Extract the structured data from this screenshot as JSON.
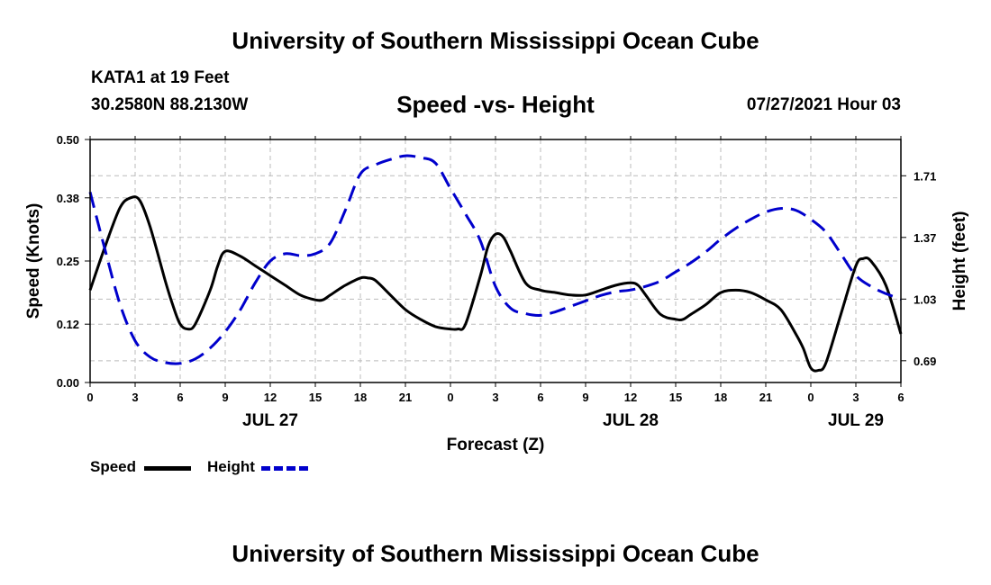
{
  "page": {
    "title_top": "University of Southern Mississippi Ocean Cube",
    "title_bottom": "University of Southern Mississippi Ocean Cube",
    "station": "KATA1 at 19 Feet",
    "coordinates": "30.2580N  88.2130W",
    "subtitle": "Speed -vs- Height",
    "date": "07/27/2021 Hour 03"
  },
  "legend": {
    "speed_label": "Speed",
    "height_label": "Height"
  },
  "colors": {
    "speed": "#000000",
    "height": "#0000cc",
    "grid": "#bbbbbb"
  },
  "chart_data": {
    "type": "line",
    "title": "Speed -vs- Height",
    "xlabel": "Forecast (Z)",
    "ylabel": "Speed (Knots)",
    "y2label": "Height (feet)",
    "x_unit": "hours since JUL 27 00Z",
    "xlim": [
      0,
      54
    ],
    "ylim": [
      0,
      0.5
    ],
    "y2lim": [
      0.57,
      1.91
    ],
    "grid": true,
    "x_ticks": [
      0,
      3,
      6,
      9,
      12,
      15,
      18,
      21,
      24,
      27,
      30,
      33,
      36,
      39,
      42,
      45,
      48,
      51,
      54
    ],
    "x_tick_labels": [
      "0",
      "3",
      "6",
      "9",
      "12",
      "15",
      "18",
      "21",
      "0",
      "3",
      "6",
      "9",
      "12",
      "15",
      "18",
      "21",
      "0",
      "3",
      "6"
    ],
    "date_labels": [
      {
        "x": 12,
        "label": "JUL 27"
      },
      {
        "x": 36,
        "label": "JUL 28"
      },
      {
        "x": 51,
        "label": "JUL 29"
      }
    ],
    "y_ticks": [
      0.0,
      0.12,
      0.25,
      0.38,
      0.5
    ],
    "y_tick_labels": [
      "0.00",
      "0.12",
      "0.25",
      "0.38",
      "0.50"
    ],
    "y2_ticks": [
      0.69,
      1.03,
      1.37,
      1.71
    ],
    "y2_tick_labels": [
      "0.69",
      "1.03",
      "1.37",
      "1.71"
    ],
    "series": [
      {
        "name": "Speed",
        "axis": "left",
        "style": "solid",
        "x": [
          0,
          1,
          2,
          2.7,
          3.3,
          4,
          5,
          5.5,
          6,
          6.5,
          7,
          8,
          8.5,
          9,
          10,
          11,
          12,
          13,
          14,
          15,
          15.5,
          16,
          17,
          18,
          18.5,
          19,
          20,
          21,
          22,
          23,
          24,
          24.5,
          25,
          26,
          26.5,
          27,
          27.5,
          28,
          29,
          30,
          31,
          32,
          33,
          34,
          35,
          36,
          36.5,
          37,
          38,
          39,
          39.5,
          40,
          41,
          42,
          43,
          44,
          45,
          46,
          47,
          47.5,
          48,
          48.5,
          49,
          50,
          51,
          51.5,
          52,
          53,
          54
        ],
        "values": [
          0.19,
          0.28,
          0.36,
          0.38,
          0.375,
          0.32,
          0.21,
          0.16,
          0.12,
          0.11,
          0.12,
          0.19,
          0.24,
          0.27,
          0.26,
          0.24,
          0.22,
          0.2,
          0.18,
          0.17,
          0.17,
          0.18,
          0.2,
          0.215,
          0.215,
          0.21,
          0.18,
          0.15,
          0.13,
          0.115,
          0.11,
          0.11,
          0.12,
          0.22,
          0.28,
          0.305,
          0.3,
          0.27,
          0.205,
          0.19,
          0.185,
          0.18,
          0.18,
          0.19,
          0.2,
          0.205,
          0.2,
          0.18,
          0.14,
          0.13,
          0.13,
          0.14,
          0.16,
          0.185,
          0.19,
          0.185,
          0.17,
          0.15,
          0.1,
          0.07,
          0.03,
          0.025,
          0.04,
          0.14,
          0.24,
          0.255,
          0.25,
          0.2,
          0.1
        ]
      },
      {
        "name": "Height",
        "axis": "right",
        "style": "dashed",
        "x": [
          0,
          1,
          2,
          3,
          4,
          5,
          6,
          7,
          8,
          9,
          10,
          11,
          12,
          13,
          14,
          15,
          16,
          17,
          18,
          19,
          20,
          21,
          22,
          23,
          24,
          25,
          26,
          27,
          28,
          29,
          30,
          31,
          32,
          33,
          34,
          35,
          36,
          37,
          38,
          39,
          40,
          41,
          42,
          43,
          44,
          45,
          46,
          47,
          48,
          49,
          50,
          51,
          52,
          53,
          54
        ],
        "values": [
          1.62,
          1.3,
          1.0,
          0.8,
          0.71,
          0.68,
          0.675,
          0.7,
          0.76,
          0.85,
          0.97,
          1.12,
          1.24,
          1.28,
          1.27,
          1.28,
          1.34,
          1.52,
          1.72,
          1.77,
          1.8,
          1.82,
          1.81,
          1.78,
          1.64,
          1.5,
          1.35,
          1.1,
          0.98,
          0.95,
          0.94,
          0.96,
          0.99,
          1.02,
          1.05,
          1.07,
          1.08,
          1.1,
          1.13,
          1.18,
          1.23,
          1.29,
          1.36,
          1.42,
          1.47,
          1.51,
          1.53,
          1.52,
          1.47,
          1.4,
          1.28,
          1.16,
          1.1,
          1.06,
          1.03
        ]
      }
    ]
  }
}
